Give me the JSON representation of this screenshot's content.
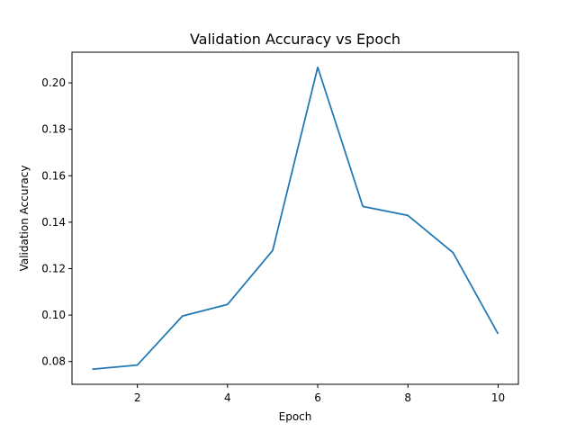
{
  "chart_data": {
    "type": "line",
    "title": "Validation Accuracy vs Epoch",
    "xlabel": "Epoch",
    "ylabel": "Validation Accuracy",
    "x": [
      1,
      2,
      3,
      4,
      5,
      6,
      7,
      8,
      9,
      10
    ],
    "series": [
      {
        "values": [
          0.0767,
          0.0785,
          0.0996,
          0.1046,
          0.1278,
          0.2067,
          0.1468,
          0.1429,
          0.1269,
          0.0919
        ],
        "color": "#1f77b4"
      }
    ],
    "xlim": [
      0.55,
      10.45
    ],
    "ylim": [
      0.0702,
      0.2132
    ],
    "xticks": [
      2,
      4,
      6,
      8,
      10
    ],
    "xtick_labels": [
      "2",
      "4",
      "6",
      "8",
      "10"
    ],
    "yticks": [
      0.08,
      0.1,
      0.12,
      0.14,
      0.16,
      0.18,
      0.2
    ],
    "ytick_labels": [
      "0.08",
      "0.10",
      "0.12",
      "0.14",
      "0.16",
      "0.18",
      "0.20"
    ],
    "grid": false,
    "legend": "none"
  }
}
